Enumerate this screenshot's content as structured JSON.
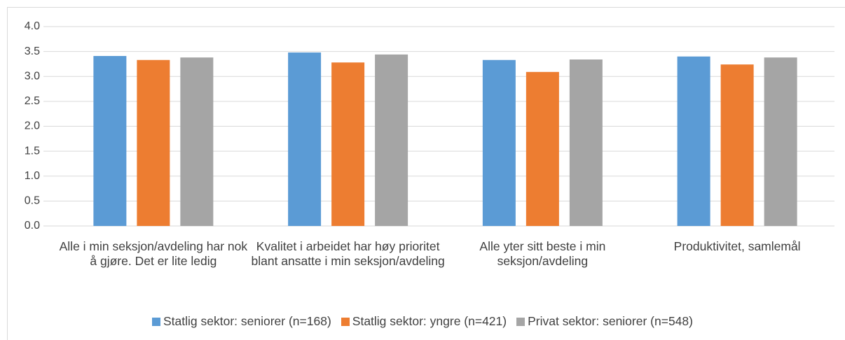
{
  "chart_data": {
    "type": "bar",
    "categories": [
      "Alle i min seksjon/avdeling har nok å gjøre. Det er lite ledig",
      "Kvalitet i arbeidet har høy prioritet blant ansatte i min seksjon/avdeling",
      "Alle yter sitt beste i min seksjon/avdeling",
      "Produktivitet, samlemål"
    ],
    "series": [
      {
        "name": "Statlig sektor: seniorer (n=168)",
        "color": "#5b9bd5",
        "values": [
          3.41,
          3.48,
          3.33,
          3.4
        ]
      },
      {
        "name": "Statlig sektor: yngre (n=421)",
        "color": "#ed7d31",
        "values": [
          3.33,
          3.28,
          3.09,
          3.24
        ]
      },
      {
        "name": "Privat sektor: seniorer (n=548)",
        "color": "#a5a5a5",
        "values": [
          3.38,
          3.44,
          3.34,
          3.38
        ]
      }
    ],
    "ylim": [
      0,
      4
    ],
    "yticks": [
      {
        "value": 0,
        "label": "0.0"
      },
      0.5,
      {
        "value": 1,
        "label": "1.0"
      },
      1.5,
      {
        "value": 2,
        "label": "2.0"
      },
      2.5,
      {
        "value": 3,
        "label": "3.0"
      },
      3.5,
      {
        "value": 4,
        "label": "4.0"
      }
    ],
    "grid": true,
    "legend": "bottom"
  }
}
